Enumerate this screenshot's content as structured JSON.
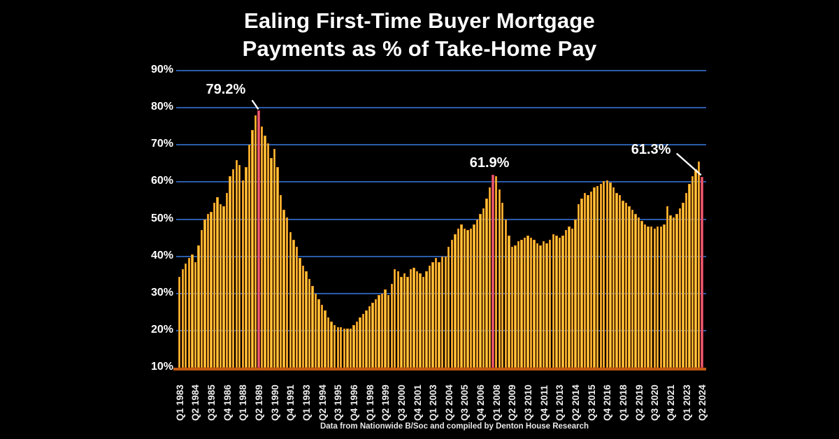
{
  "title": {
    "line1": "Ealing First-Time Buyer Mortgage",
    "line2": "Payments as % of Take-Home Pay"
  },
  "footer": "Data from Nationwide B/Soc and compiled by Denton House Research",
  "chart_data": {
    "type": "bar",
    "title": "Ealing First-Time Buyer Mortgage Payments as % of Take-Home Pay",
    "xlabel": "",
    "ylabel": "",
    "ylim": [
      10,
      90
    ],
    "yticks": [
      90,
      80,
      70,
      60,
      50,
      40,
      30,
      20,
      10
    ],
    "ytick_suffix": "%",
    "grid": true,
    "x_label_step": 5,
    "x_labels": [
      "Q1 1983",
      "Q2 1984",
      "Q3 1985",
      "Q4 1986",
      "Q1 1988",
      "Q2 1989",
      "Q3 1990",
      "Q4 1991",
      "Q1 1993",
      "Q2 1994",
      "Q3 1995",
      "Q4 1996",
      "Q1 1998",
      "Q2 1999",
      "Q3 2000",
      "Q4 2001",
      "Q1 2003",
      "Q2 2004",
      "Q3 2005",
      "Q4 2006",
      "Q1 2008",
      "Q2 2009",
      "Q3 2010",
      "Q4 2011",
      "Q1 2013",
      "Q2 2014",
      "Q3 2015",
      "Q4 2016",
      "Q1 2018",
      "Q2 2019",
      "Q3 2020",
      "Q4 2021",
      "Q1 2023",
      "Q2 2024"
    ],
    "values": [
      34.5,
      36.5,
      38,
      39.5,
      40.5,
      38.5,
      43,
      47,
      50,
      51.5,
      52,
      54.5,
      56,
      54,
      53.5,
      57,
      61.5,
      63.5,
      66,
      64.5,
      60.5,
      64,
      70,
      74,
      78,
      79.2,
      75,
      72.5,
      70.5,
      66.5,
      69,
      64,
      56.5,
      52.5,
      50.5,
      46.5,
      44.5,
      42.5,
      39.5,
      37.5,
      36,
      34,
      32,
      30,
      28.5,
      27,
      25.5,
      23.5,
      22.5,
      21.5,
      21,
      21,
      20.5,
      20.5,
      20.5,
      21.5,
      22.5,
      23.5,
      24.5,
      25.5,
      26.5,
      27.5,
      28.5,
      29.5,
      30,
      31,
      29.5,
      32.5,
      36.5,
      36,
      34.5,
      35.5,
      34.5,
      36.5,
      37,
      36,
      35.5,
      34.5,
      36,
      37.5,
      38.5,
      39.5,
      38.5,
      40,
      40,
      42.5,
      44.5,
      46,
      47.5,
      48.5,
      47.5,
      47,
      47.5,
      48.5,
      50,
      51.5,
      53,
      55.5,
      58.5,
      61.9,
      61.5,
      58,
      54.5,
      50,
      45.5,
      42.5,
      43,
      44,
      44.5,
      45,
      45.5,
      45,
      44.5,
      43.5,
      43,
      44,
      43.5,
      44.5,
      46,
      45.5,
      45,
      45.5,
      47,
      48,
      47.5,
      50,
      54,
      55.5,
      57,
      56.5,
      57.5,
      58.5,
      59,
      59.5,
      60.2,
      60.4,
      59.8,
      58.5,
      57,
      56.5,
      55,
      54.5,
      53.5,
      52.5,
      51.5,
      50.5,
      49.5,
      48.5,
      48,
      48,
      47.5,
      48,
      48,
      48.5,
      53.5,
      51,
      50.5,
      51.5,
      53,
      54.5,
      57,
      59.5,
      61.5,
      63.5,
      65.5,
      61.3
    ],
    "highlighted_bars": [
      {
        "index": 25,
        "label": "79.2%"
      },
      {
        "index": 99,
        "label": "61.9%"
      },
      {
        "index": 165,
        "label": "61.3%"
      }
    ],
    "colors": {
      "background": "#000000",
      "bar_fill": "#FFC93E",
      "bar_border": "#E08C1C",
      "highlight_fill": "#ED5E6E",
      "highlight_border": "#C43B52",
      "gridline": "#2A5CAA",
      "axis_line": "#C45911",
      "text": "#FFFFFF",
      "annotation_line": "#FFFFFF"
    }
  }
}
